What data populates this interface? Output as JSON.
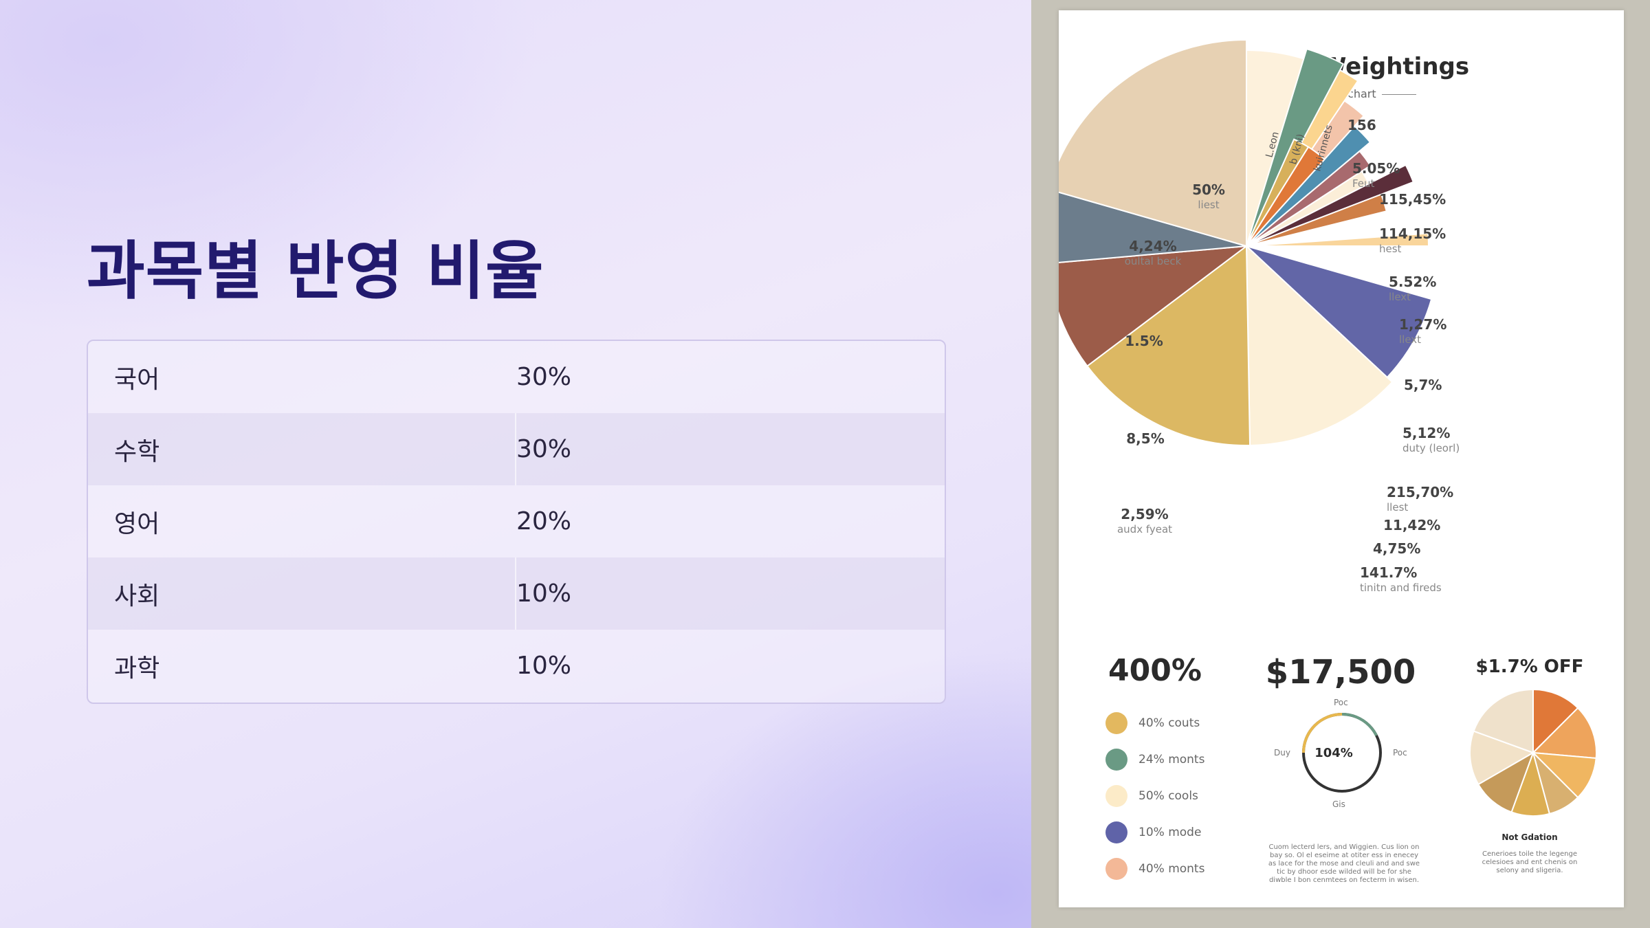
{
  "slide": {
    "title": "과목별 반영 비율",
    "rows": [
      {
        "subject": "국어",
        "value": "30%"
      },
      {
        "subject": "수학",
        "value": "30%"
      },
      {
        "subject": "영어",
        "value": "20%"
      },
      {
        "subject": "사회",
        "value": "10%"
      },
      {
        "subject": "과학",
        "value": "10%"
      }
    ]
  },
  "poster": {
    "title": "Subject Weightings",
    "subtitle": "Pirs ler chart",
    "stat1": "400%",
    "stat2": "$17,500",
    "stat3": "$1.7% OFF",
    "legend": [
      {
        "label": "40% couts",
        "color": "#e3b85f"
      },
      {
        "label": "24% monts",
        "color": "#6a9a84"
      },
      {
        "label": "50% cools",
        "color": "#fcebc8"
      },
      {
        "label": "10% mode",
        "color": "#5f63a8"
      },
      {
        "label": "40% monts",
        "color": "#f3b897"
      }
    ],
    "gauge": {
      "center": "104%",
      "left": "Duy",
      "right": "Poc",
      "top": "Poc",
      "bottom": "Gis"
    },
    "mini_pie_caption": "Not Gdation",
    "note_center": "Cuom lecterd lers, and Wiggien. Cus lion on bay so. Ol el eseime at otiter ess in enecey as lace for the mose and cleuli and and swe tic by dhoor esde wilded will be for she diwble I bon cenmtees on fecterm in wisen.",
    "note_right": "Cenerioes toile the legenge celesioes and ent chenis on selony and sligeria.",
    "pie_labels": [
      {
        "val": "50%",
        "sub": "liest"
      },
      {
        "val": "4,24%",
        "sub": "oultal beck"
      },
      {
        "val": "1.5%",
        "sub": ""
      },
      {
        "val": "8,5%",
        "sub": ""
      },
      {
        "val": "2,59%",
        "sub": "audx fyeat"
      },
      {
        "val": "156",
        "sub": ""
      },
      {
        "val": "5.05%",
        "sub": "Feut"
      },
      {
        "val": "115,45%",
        "sub": ""
      },
      {
        "val": "114,15%",
        "sub": "hest"
      },
      {
        "val": "5.52%",
        "sub": "llext"
      },
      {
        "val": "1,27%",
        "sub": "llext"
      },
      {
        "val": "5,7%",
        "sub": ""
      },
      {
        "val": "5,12%",
        "sub": "duty (leorl)"
      },
      {
        "val": "215,70%",
        "sub": "llest"
      },
      {
        "val": "11,42%",
        "sub": ""
      },
      {
        "val": "4,75%",
        "sub": ""
      },
      {
        "val": "141.7%",
        "sub": "tinitn and fireds"
      }
    ],
    "rot_labels": [
      "L.eon",
      "b (kni)",
      "kuirinnets"
    ]
  }
}
